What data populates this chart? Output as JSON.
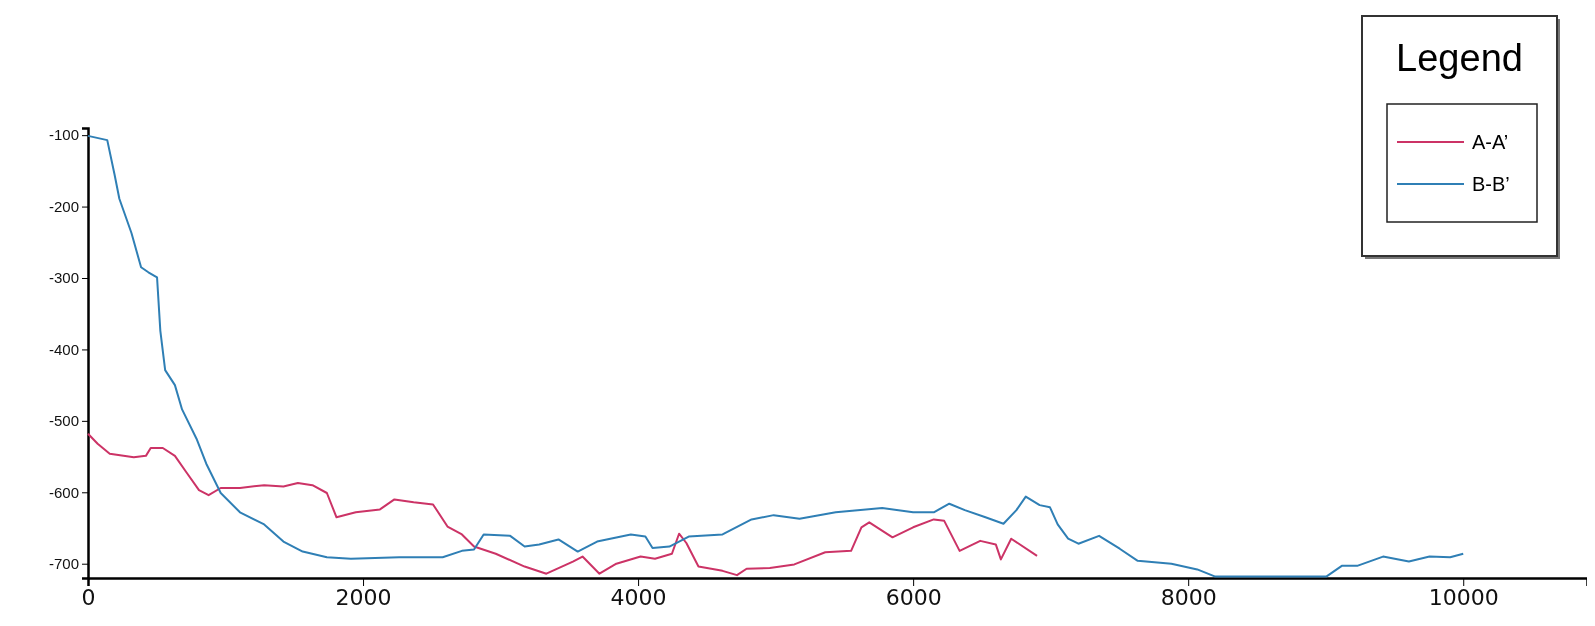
{
  "chart_data": {
    "type": "line",
    "legend_title": "Legend",
    "legend": "top right",
    "xlim": [
      0,
      10900
    ],
    "ylim": [
      -720,
      -90
    ],
    "xticks": [
      0,
      2000,
      4000,
      6000,
      8000,
      10000
    ],
    "yticks": [
      -100,
      -200,
      -300,
      -400,
      -500,
      -600,
      -700
    ],
    "line_style": "solid",
    "series": [
      {
        "name": "A-A’",
        "color": "#cc3366",
        "x": [
          0,
          70,
          158,
          333,
          421,
          456,
          544,
          632,
          719,
          807,
          877,
          965,
          1105,
          1281,
          1421,
          1526,
          1632,
          1737,
          1807,
          1947,
          2123,
          2228,
          2368,
          2509,
          2614,
          2719,
          2807,
          2965,
          3175,
          3333,
          3526,
          3596,
          3719,
          3842,
          4018,
          4123,
          4246,
          4298,
          4351,
          4439,
          4614,
          4719,
          4789,
          4958,
          5136,
          5361,
          5549,
          5624,
          5681,
          5850,
          6000,
          6150,
          6226,
          6338,
          6488,
          6601,
          6638,
          6713,
          6901
        ],
        "values": [
          -518,
          -532,
          -546,
          -551,
          -549,
          -538,
          -538,
          -549,
          -573,
          -597,
          -604,
          -594,
          -594,
          -590,
          -592,
          -587,
          -590,
          -601,
          -635,
          -628,
          -624,
          -610,
          -614,
          -617,
          -648,
          -659,
          -676,
          -686,
          -704,
          -714,
          -697,
          -690,
          -714,
          -700,
          -690,
          -693,
          -686,
          -658,
          -671,
          -704,
          -710,
          -716,
          -707,
          -706,
          -701,
          -684,
          -682,
          -649,
          -642,
          -663,
          -649,
          -638,
          -640,
          -682,
          -668,
          -673,
          -694,
          -665,
          -689
        ]
      },
      {
        "name": "B-B’",
        "color": "#2f7fb5",
        "x": [
          0,
          140,
          193,
          228,
          316,
          386,
          439,
          502,
          526,
          561,
          632,
          684,
          789,
          860,
          965,
          1105,
          1281,
          1421,
          1561,
          1737,
          1912,
          2263,
          2579,
          2719,
          2807,
          2877,
          3070,
          3175,
          3281,
          3421,
          3561,
          3702,
          3947,
          4053,
          4105,
          4228,
          4368,
          4614,
          4825,
          4986,
          5174,
          5437,
          5775,
          6000,
          6150,
          6263,
          6376,
          6526,
          6657,
          6751,
          6819,
          6920,
          6995,
          7051,
          7127,
          7202,
          7352,
          7502,
          7633,
          7878,
          8066,
          8197,
          8441,
          9004,
          9117,
          9229,
          9417,
          9605,
          9755,
          9905,
          10000
        ],
        "values": [
          -101,
          -107,
          -155,
          -189,
          -237,
          -285,
          -292,
          -299,
          -374,
          -429,
          -450,
          -484,
          -525,
          -560,
          -601,
          -628,
          -645,
          -669,
          -683,
          -691,
          -693,
          -691,
          -691,
          -682,
          -680,
          -659,
          -661,
          -676,
          -673,
          -666,
          -683,
          -669,
          -659,
          -662,
          -678,
          -676,
          -662,
          -659,
          -638,
          -632,
          -637,
          -628,
          -622,
          -628,
          -628,
          -616,
          -625,
          -635,
          -644,
          -625,
          -606,
          -618,
          -621,
          -645,
          -665,
          -672,
          -661,
          -679,
          -696,
          -700,
          -708,
          -718,
          -718,
          -718,
          -703,
          -703,
          -690,
          -697,
          -690,
          -691,
          -686
        ]
      }
    ]
  }
}
